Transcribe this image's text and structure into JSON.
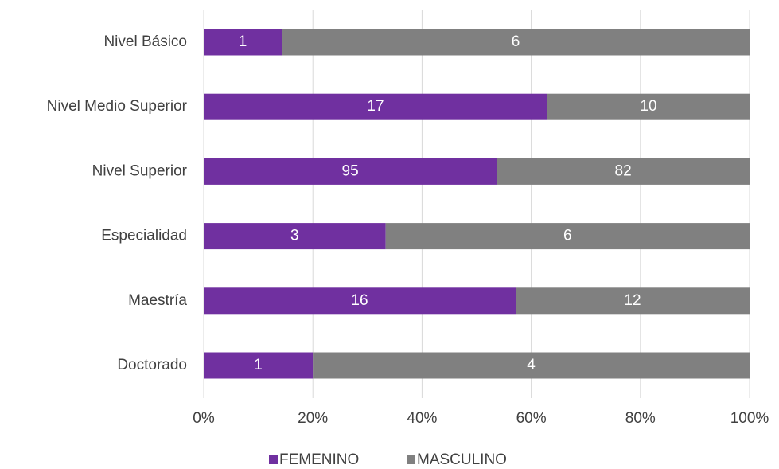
{
  "chart_data": {
    "type": "bar",
    "orientation": "horizontal",
    "stacking": "percent",
    "categories": [
      "Nivel Básico",
      "Nivel Medio Superior",
      "Nivel Superior",
      "Especialidad",
      "Maestría",
      "Doctorado"
    ],
    "series": [
      {
        "name": "FEMENINO",
        "color": "#7030a0",
        "values": [
          1,
          17,
          95,
          3,
          16,
          1
        ]
      },
      {
        "name": "MASCULINO",
        "color": "#808080",
        "values": [
          6,
          10,
          82,
          6,
          12,
          4
        ]
      }
    ],
    "xlim": [
      0,
      100
    ],
    "xticks": [
      {
        "value": 0,
        "label": "0%"
      },
      {
        "value": 20,
        "label": "20%"
      },
      {
        "value": 40,
        "label": "40%"
      },
      {
        "value": 60,
        "label": "60%"
      },
      {
        "value": 80,
        "label": "80%"
      },
      {
        "value": 100,
        "label": "100%"
      }
    ],
    "grid": true,
    "legend": "bottom"
  }
}
